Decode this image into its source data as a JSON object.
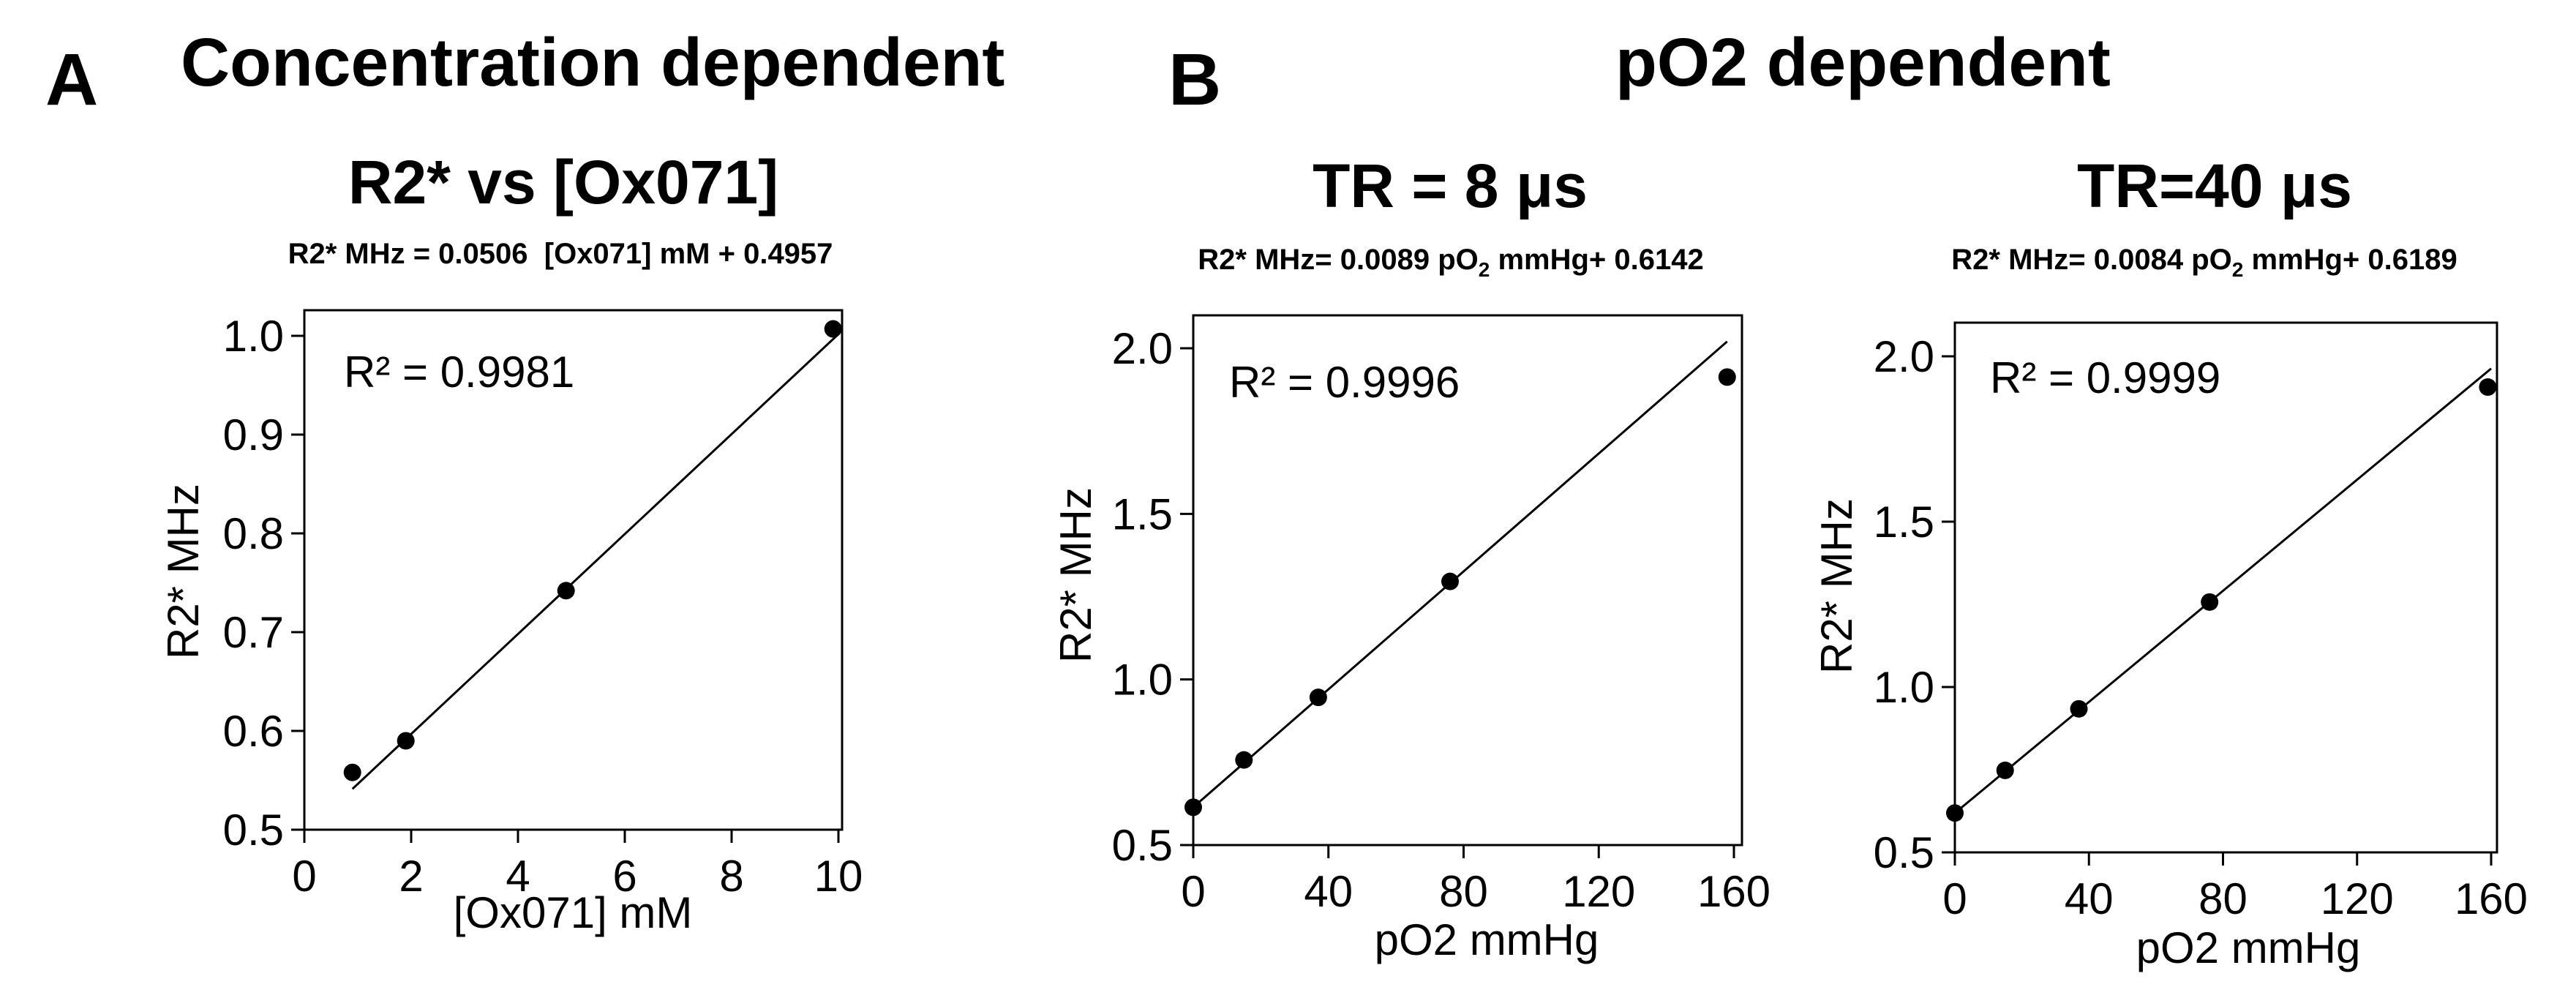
{
  "panel_a": {
    "letter": "A",
    "heading": "Concentration dependent"
  },
  "panel_b": {
    "letter": "B",
    "heading": "pO2 dependent"
  },
  "chart_data": [
    {
      "type": "scatter",
      "title": "R2* vs [Ox071]",
      "equation": "R2* MHz = 0.0506  [Ox071] mM + 0.4957",
      "r_squared_label": "R² = 0.9981",
      "xlabel": "[Ox071] mM",
      "ylabel": "R2* MHz",
      "xlim": [
        0,
        10
      ],
      "ylim": [
        0.5,
        1.03
      ],
      "xticks": [
        0,
        2,
        4,
        6,
        8,
        10
      ],
      "xtick_labels": [
        "0",
        "2",
        "4",
        "6",
        "8",
        "10"
      ],
      "yticks": [
        0.5,
        0.6,
        0.7,
        0.8,
        0.9,
        1.0
      ],
      "ytick_labels": [
        "0.5",
        "0.6",
        "0.7",
        "0.8",
        "0.9",
        "1.0"
      ],
      "points": [
        {
          "x": 0.9,
          "y": 0.558
        },
        {
          "x": 1.9,
          "y": 0.59
        },
        {
          "x": 4.9,
          "y": 0.742
        },
        {
          "x": 9.9,
          "y": 1.007
        }
      ],
      "fit": {
        "slope": 0.0506,
        "intercept": 0.4957,
        "x_range": [
          0.9,
          10
        ]
      },
      "grid": false
    },
    {
      "type": "scatter",
      "title": "TR = 8 μs",
      "equation_prefix": "R2* MHz= 0.0089 pO",
      "equation_sub": "2",
      "equation_suffix": " mmHg+ 0.6142",
      "r_squared_label": "R² = 0.9996",
      "xlabel": "pO2 mmHg",
      "ylabel": "R2* MHz",
      "xlim": [
        0,
        160
      ],
      "ylim": [
        0.5,
        2.05
      ],
      "xticks": [
        0,
        40,
        80,
        120,
        160
      ],
      "xtick_labels": [
        "0",
        "40",
        "80",
        "120",
        "160"
      ],
      "yticks": [
        0.5,
        1.0,
        1.5,
        2.0
      ],
      "ytick_labels": [
        "0.5",
        "1.0",
        "1.5",
        "2.0"
      ],
      "points": [
        {
          "x": 0,
          "y": 0.614
        },
        {
          "x": 15,
          "y": 0.757
        },
        {
          "x": 37,
          "y": 0.946
        },
        {
          "x": 76,
          "y": 1.296
        },
        {
          "x": 158,
          "y": 1.913
        }
      ],
      "fit": {
        "slope": 0.0089,
        "intercept": 0.6142,
        "x_range": [
          0,
          158
        ]
      },
      "grid": false
    },
    {
      "type": "scatter",
      "title": "TR=40 μs",
      "equation_prefix": "R2* MHz= 0.0084 pO",
      "equation_sub": "2",
      "equation_suffix": " mmHg+ 0.6189",
      "r_squared_label": "R² = 0.9999",
      "xlabel": "pO2 mmHg",
      "ylabel": "R2* MHz",
      "xlim": [
        0,
        160
      ],
      "ylim": [
        0.5,
        2.05
      ],
      "xticks": [
        0,
        40,
        80,
        120,
        160
      ],
      "xtick_labels": [
        "0",
        "40",
        "80",
        "120",
        "160"
      ],
      "yticks": [
        0.5,
        1.0,
        1.5,
        2.0
      ],
      "ytick_labels": [
        "0.5",
        "1.0",
        "1.5",
        "2.0"
      ],
      "points": [
        {
          "x": 0,
          "y": 0.619
        },
        {
          "x": 15,
          "y": 0.748
        },
        {
          "x": 37,
          "y": 0.934
        },
        {
          "x": 76,
          "y": 1.257
        },
        {
          "x": 159,
          "y": 1.907
        }
      ],
      "fit": {
        "slope": 0.0084,
        "intercept": 0.6189,
        "x_range": [
          0,
          160
        ]
      },
      "grid": false
    }
  ]
}
